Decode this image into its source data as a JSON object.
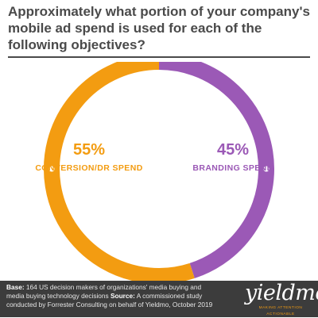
{
  "title": "Approximately what portion of your company's mobile ad spend is used for each of the following objectives?",
  "chart_data": {
    "type": "pie",
    "style": "donut",
    "slices": [
      {
        "label": "CONVERSION/DR SPEND",
        "value": 55,
        "value_label": "55%",
        "color": "#f39c11"
      },
      {
        "label": "BRANDING SPEND",
        "value": 45,
        "value_label": "45%",
        "color": "#9b59b6"
      }
    ]
  },
  "footer": {
    "base_label": "Base:",
    "base_text": "164 US decision makers of organizations' media buying and media buying technology decisions",
    "source_label": "Source:",
    "source_text": "A commissioned study conducted by Forrester Consulting on behalf of Yieldmo, October 2019"
  },
  "brand": {
    "name": "yieldmo",
    "tagline": "MAKING ATTENTION ACTIONABLE"
  }
}
